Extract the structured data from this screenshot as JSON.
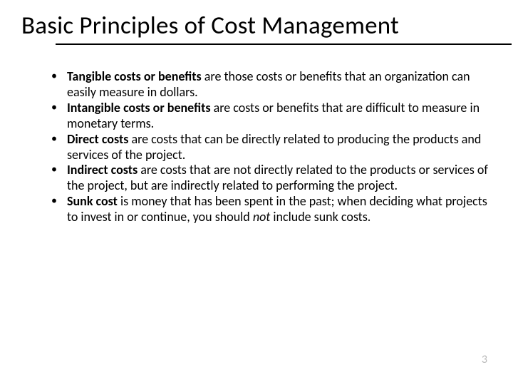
{
  "title": "Basic Principles of Cost Management",
  "bullets": [
    {
      "bold": "Tangible costs or benefits ",
      "text_before": "",
      "text_after": "are those costs or benefits that an organization can easily measure in dollars."
    },
    {
      "bold": "Intangible costs or benefits ",
      "text_before": "",
      "text_after": "are costs or benefits that are difficult to measure in monetary terms."
    },
    {
      "bold": "Direct costs ",
      "text_before": "",
      "text_after": "are costs that can be directly related to producing the products and services of the project."
    },
    {
      "bold": "Indirect costs ",
      "text_before": "",
      "text_after": "are costs that are not directly related to the products or services of the project, but are indirectly related to performing the project."
    },
    {
      "bold": "Sunk cost ",
      "text_before": "",
      "text_after_1": "is money that has been spent in the past; when deciding what projects to invest in or continue, you should ",
      "italic": "not",
      "text_after_2": " include sunk costs."
    }
  ],
  "page_number": "3",
  "style": {
    "background_color": "#ffffff",
    "title_fontsize": 35,
    "body_fontsize": 18,
    "text_color": "#000000",
    "divider_color": "#000000",
    "page_number_color": "#b8b8b8",
    "font_family": "Calibri"
  }
}
